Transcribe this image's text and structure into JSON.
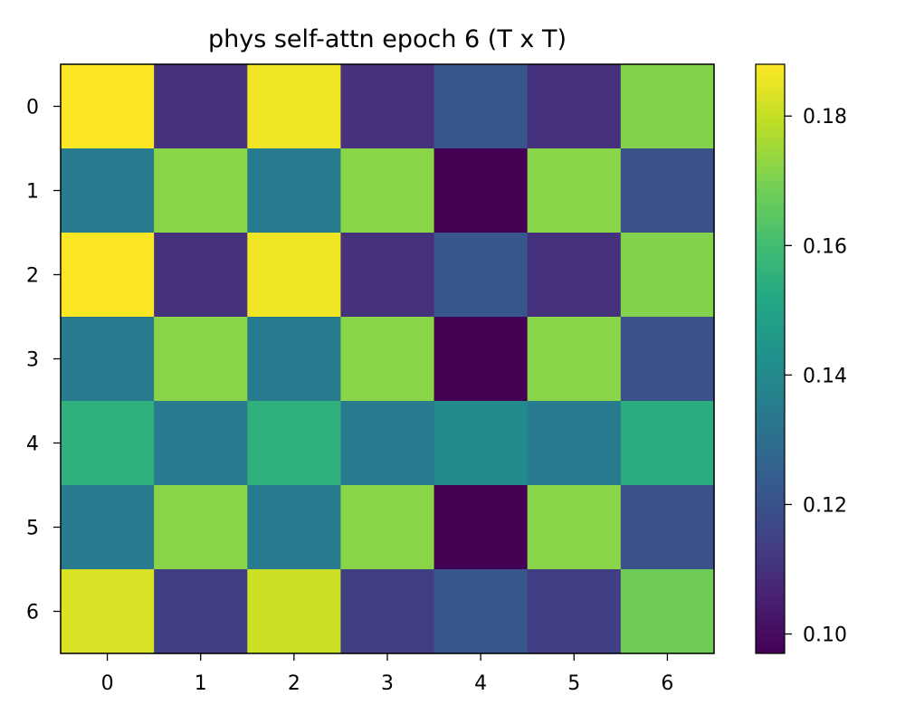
{
  "chart_data": {
    "type": "heatmap",
    "title": "phys self-attn epoch 6 (T x T)",
    "xlabel": "",
    "ylabel": "",
    "x_categories": [
      "0",
      "1",
      "2",
      "3",
      "4",
      "5",
      "6"
    ],
    "y_categories": [
      "0",
      "1",
      "2",
      "3",
      "4",
      "5",
      "6"
    ],
    "values": [
      [
        0.188,
        0.11,
        0.186,
        0.11,
        0.122,
        0.11,
        0.171
      ],
      [
        0.134,
        0.172,
        0.134,
        0.172,
        0.097,
        0.172,
        0.12
      ],
      [
        0.188,
        0.11,
        0.186,
        0.11,
        0.122,
        0.11,
        0.171
      ],
      [
        0.134,
        0.172,
        0.134,
        0.172,
        0.097,
        0.172,
        0.12
      ],
      [
        0.155,
        0.134,
        0.155,
        0.134,
        0.14,
        0.134,
        0.154
      ],
      [
        0.134,
        0.172,
        0.134,
        0.172,
        0.097,
        0.172,
        0.12
      ],
      [
        0.183,
        0.114,
        0.181,
        0.114,
        0.122,
        0.114,
        0.168
      ]
    ],
    "colormap": "viridis",
    "vmin": 0.097,
    "vmax": 0.188,
    "colorbar": {
      "ticks": [
        0.1,
        0.12,
        0.14,
        0.16,
        0.18
      ],
      "tick_labels": [
        "0.10",
        "0.12",
        "0.14",
        "0.16",
        "0.18"
      ],
      "placement": "right"
    },
    "grid": false
  }
}
